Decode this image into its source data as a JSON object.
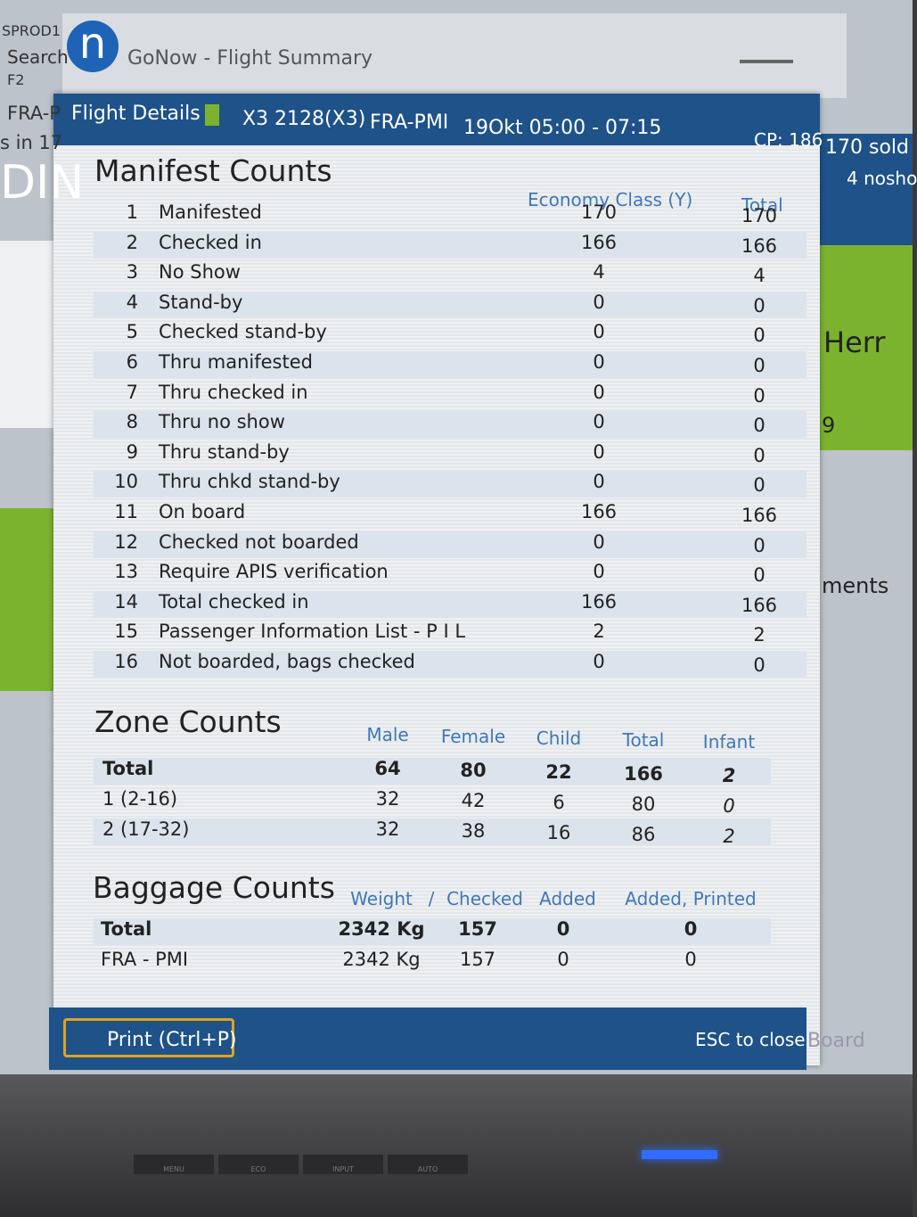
{
  "background": {
    "left": [
      "SPROD1",
      "Search",
      "F2",
      "FRA-P",
      "s in 17",
      "DIN"
    ],
    "right": [
      "170 sold",
      "4 nosho",
      "Herr",
      "9",
      "ments",
      "Board"
    ]
  },
  "window": {
    "logo": "n",
    "title": "GoNow - Flight Summary"
  },
  "header": {
    "label": "Flight Details |",
    "flight": "X3 2128(X3)",
    "route": "FRA-PMI",
    "time": "19Okt 05:00 - 07:15",
    "cp": "CP: 186"
  },
  "manifest": {
    "title": "Manifest Counts",
    "columns": [
      "Economy Class (Y)",
      "Total"
    ],
    "rows": [
      [
        1,
        "Manifested",
        170,
        170
      ],
      [
        2,
        "Checked in",
        166,
        166
      ],
      [
        3,
        "No Show",
        4,
        4
      ],
      [
        4,
        "Stand-by",
        0,
        0
      ],
      [
        5,
        "Checked stand-by",
        0,
        0
      ],
      [
        6,
        "Thru manifested",
        0,
        0
      ],
      [
        7,
        "Thru checked in",
        0,
        0
      ],
      [
        8,
        "Thru no show",
        0,
        0
      ],
      [
        9,
        "Thru stand-by",
        0,
        0
      ],
      [
        10,
        "Thru chkd stand-by",
        0,
        0
      ],
      [
        11,
        "On board",
        166,
        166
      ],
      [
        12,
        "Checked not boarded",
        0,
        0
      ],
      [
        13,
        "Require APIS verification",
        0,
        0
      ],
      [
        14,
        "Total checked in",
        166,
        166
      ],
      [
        15,
        "Passenger Information List - P I L",
        2,
        2
      ],
      [
        16,
        "Not boarded, bags checked",
        0,
        0
      ]
    ]
  },
  "zone": {
    "title": "Zone Counts",
    "columns": [
      "Male",
      "Female",
      "Child",
      "Total",
      "Infant"
    ],
    "rows": [
      [
        "Total",
        64,
        80,
        22,
        166,
        2
      ],
      [
        "1 (2-16)",
        32,
        42,
        6,
        80,
        0
      ],
      [
        "2 (17-32)",
        32,
        38,
        16,
        86,
        2
      ]
    ]
  },
  "baggage": {
    "title": "Baggage Counts",
    "columns": [
      "Weight",
      "/",
      "Checked",
      "Added",
      "Added, Printed"
    ],
    "rows": [
      [
        "Total",
        "2342 Kg",
        157,
        0,
        0
      ],
      [
        "FRA - PMI",
        "2342 Kg",
        157,
        0,
        0
      ]
    ]
  },
  "footer": {
    "print": "Print (Ctrl+P)",
    "close": "ESC to close"
  },
  "monitor": [
    "MENU",
    "ECO",
    "INPUT",
    "AUTO"
  ]
}
